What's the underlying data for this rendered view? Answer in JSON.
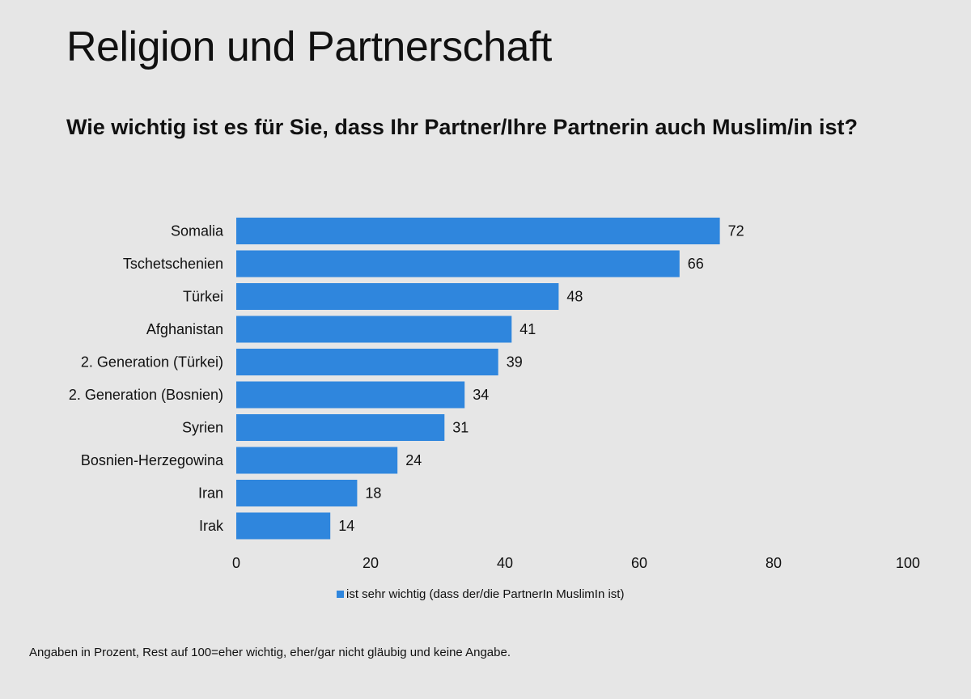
{
  "title": "Religion und Partnerschaft",
  "subtitle": "Wie wichtig ist es für Sie, dass Ihr Partner/Ihre Partnerin auch Muslim/in ist?",
  "footnote": "Angaben in Prozent, Rest auf 100=eher wichtig, eher/gar nicht gläubig und keine Angabe.",
  "colors": {
    "bar": "#2f86dd",
    "background": "#e6e6e6"
  },
  "chart_data": {
    "type": "bar",
    "orientation": "horizontal",
    "categories": [
      "Somalia",
      "Tschetschenien",
      "Türkei",
      "Afghanistan",
      "2. Generation (Türkei)",
      "2. Generation (Bosnien)",
      "Syrien",
      "Bosnien-Herzegowina",
      "Iran",
      "Irak"
    ],
    "series": [
      {
        "name": "ist sehr wichtig (dass der/die PartnerIn MuslimIn ist)",
        "values": [
          72,
          66,
          48,
          41,
          39,
          34,
          31,
          24,
          18,
          14
        ]
      }
    ],
    "xlim": [
      0,
      100
    ],
    "xticks": [
      0,
      20,
      40,
      60,
      80,
      100
    ],
    "grid": false,
    "legend_position": "bottom"
  }
}
